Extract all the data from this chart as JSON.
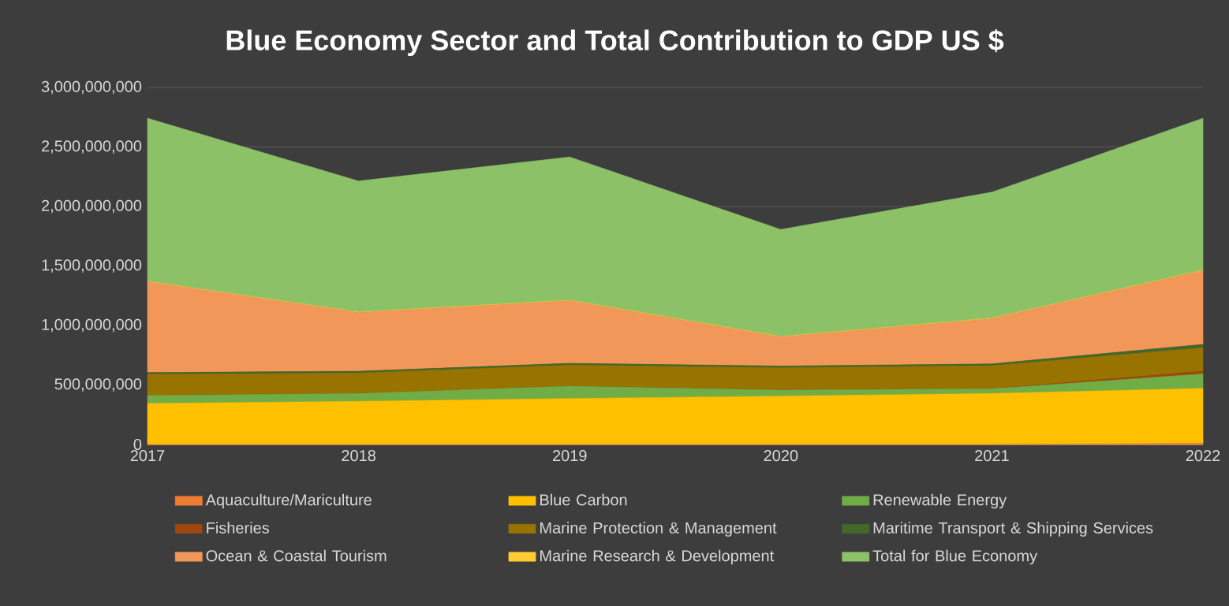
{
  "chart_data": {
    "type": "area",
    "stacked": true,
    "title": "Blue Economy Sector and Total Contribution to GDP US $",
    "categories": [
      "2017",
      "2018",
      "2019",
      "2020",
      "2021",
      "2022"
    ],
    "series": [
      {
        "name": "Aquaculture/Mariculture",
        "color": "#ed7d31",
        "values": [
          0,
          0,
          0,
          0,
          0,
          10000000
        ]
      },
      {
        "name": "Blue Carbon",
        "color": "#ffc000",
        "values": [
          345000000,
          362000000,
          386000000,
          406000000,
          428000000,
          461000000
        ]
      },
      {
        "name": "Renewable Energy",
        "color": "#70ad47",
        "values": [
          67000000,
          66000000,
          104000000,
          51000000,
          40000000,
          122000000
        ]
      },
      {
        "name": "Fisheries",
        "color": "#9e480e",
        "values": [
          0,
          0,
          0,
          0,
          0,
          22000000
        ]
      },
      {
        "name": "Marine Protection & Management",
        "color": "#997300",
        "values": [
          177000000,
          172000000,
          177000000,
          187000000,
          194000000,
          198000000
        ]
      },
      {
        "name": "Maritime Transport & Shipping Services",
        "color": "#43682b",
        "values": [
          15000000,
          15000000,
          15000000,
          15000000,
          15000000,
          28000000
        ]
      },
      {
        "name": "Ocean & Coastal Tourism",
        "color": "#f1975a",
        "values": [
          762000000,
          493000000,
          525000000,
          243000000,
          380000000,
          619000000
        ]
      },
      {
        "name": "Marine Research & Development",
        "color": "#ffcd33",
        "values": [
          5000000,
          5000000,
          5000000,
          5000000,
          5000000,
          5000000
        ]
      },
      {
        "name": "Total for Blue Economy",
        "color": "#8cc168",
        "values": [
          1370000000,
          1101000000,
          1204000000,
          900000000,
          1058000000,
          1276000000
        ]
      }
    ],
    "ylim": [
      0,
      3000000000
    ],
    "yticks": [
      {
        "value": 0,
        "label": "0"
      },
      {
        "value": 500000000,
        "label": "500,000,000"
      },
      {
        "value": 1000000000,
        "label": "1,000,000,000"
      },
      {
        "value": 1500000000,
        "label": "1,500,000,000"
      },
      {
        "value": 2000000000,
        "label": "2,000,000,000"
      },
      {
        "value": 2500000000,
        "label": "2,500,000,000"
      },
      {
        "value": 3000000000,
        "label": "3,000,000,000"
      }
    ],
    "grid": "y",
    "legend": "bottom"
  }
}
